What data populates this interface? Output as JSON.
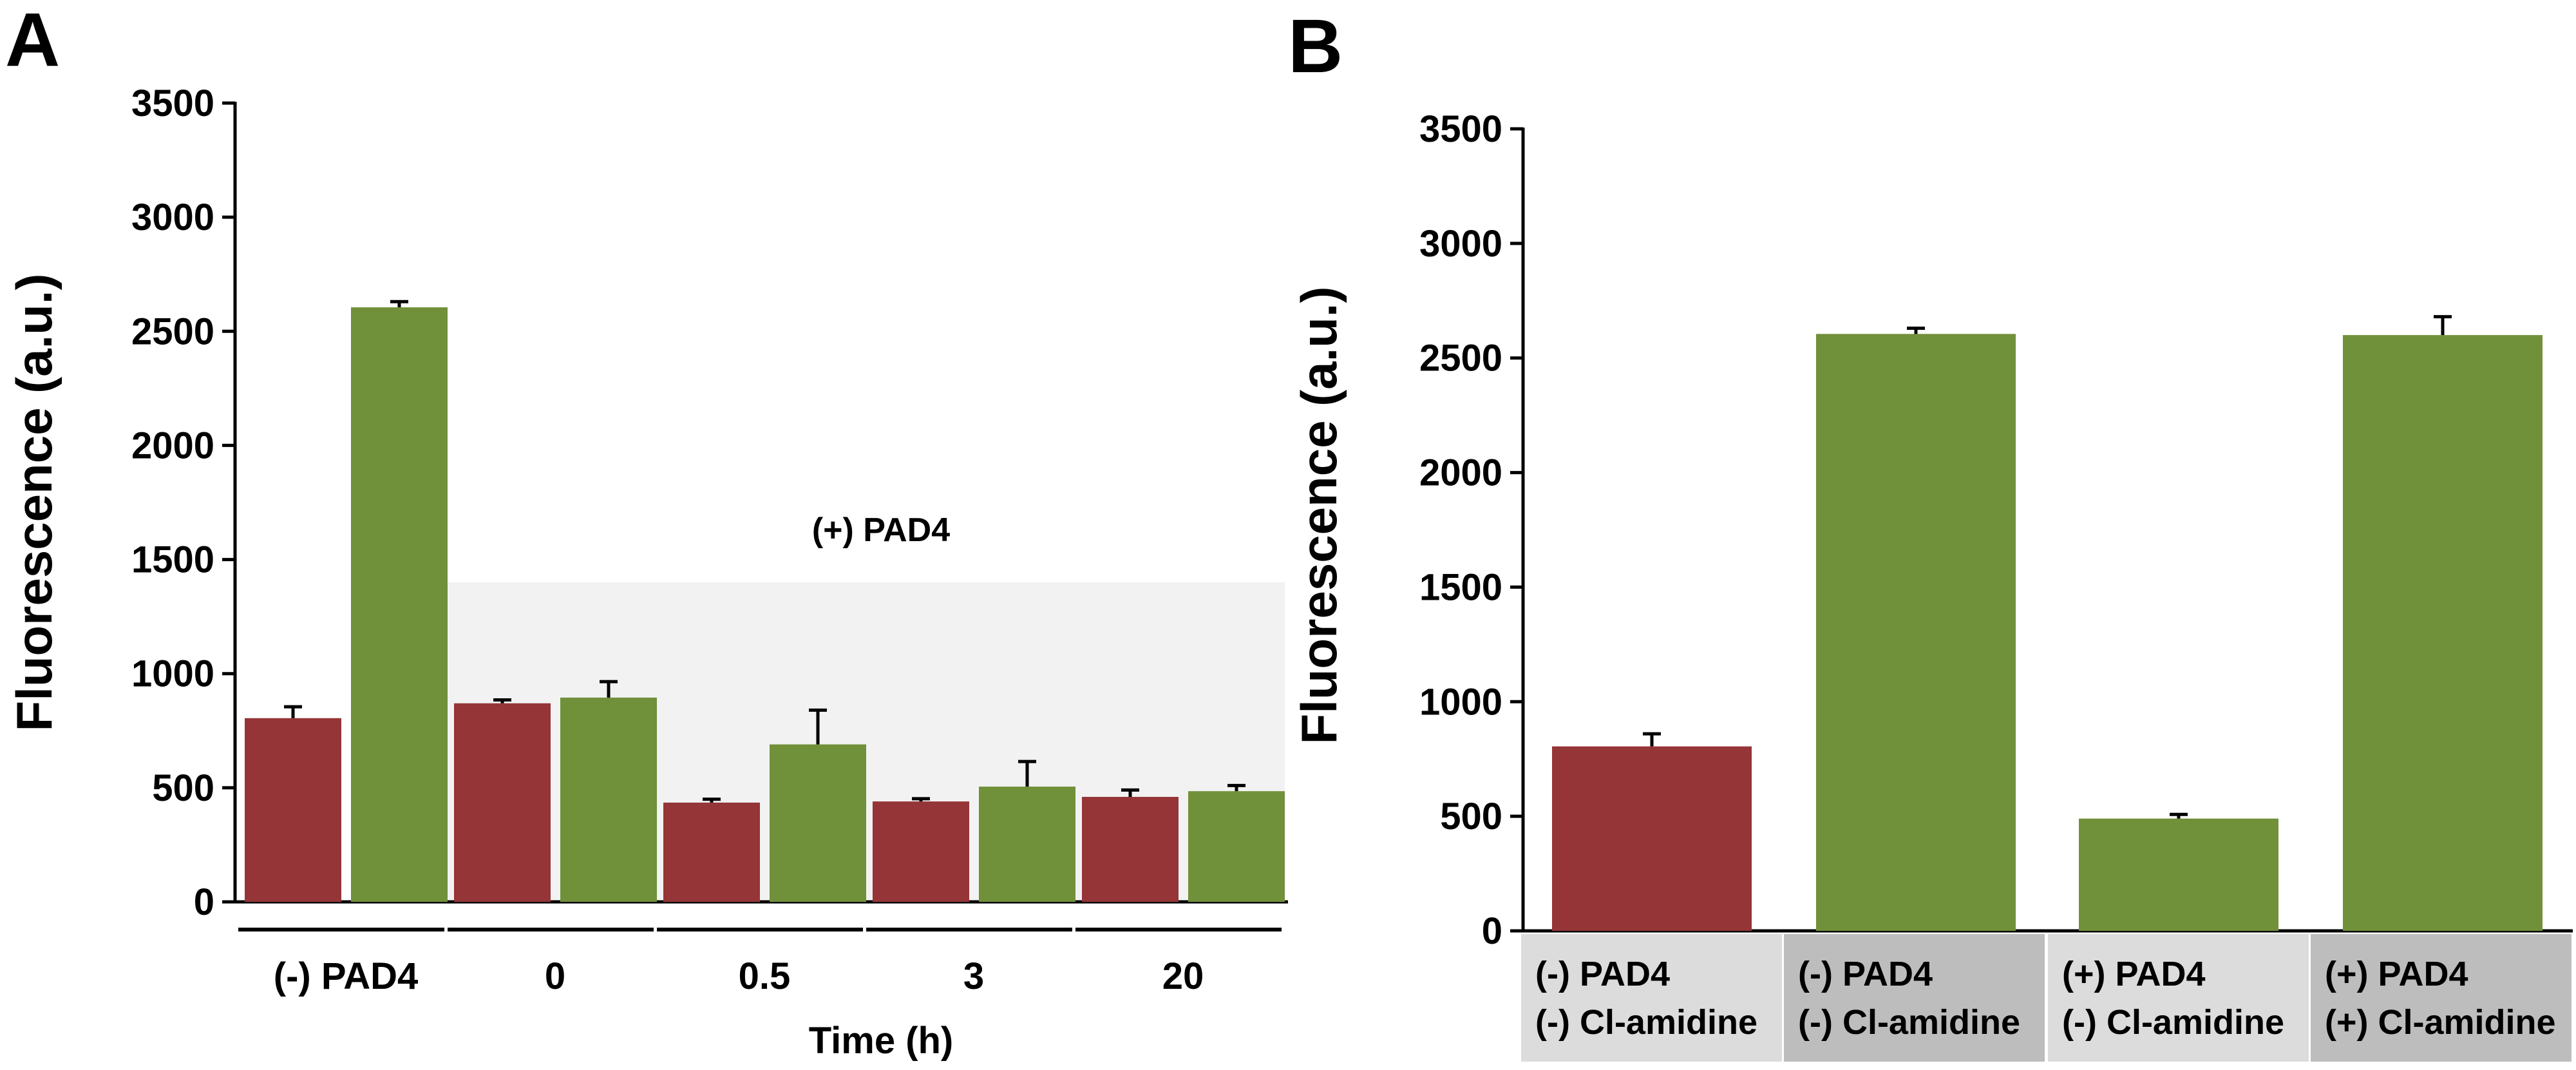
{
  "colors": {
    "red": "#953537",
    "green": "#71903A",
    "shade": "#F2F2F2",
    "cellLight": "#DCDCDC",
    "cellDark": "#BDBDBD",
    "axis": "#000000"
  },
  "chart_data": [
    {
      "panel": "A",
      "type": "bar",
      "ylabel": "Fluorescence (a.u.)",
      "xlabel": "Time (h)",
      "ylim": [
        0,
        3500
      ],
      "yticks": [
        0,
        500,
        1000,
        1500,
        2000,
        2500,
        3000,
        3500
      ],
      "groups": [
        "(-) PAD4",
        "0",
        "0.5",
        "3",
        "20"
      ],
      "series": [
        {
          "name": "red",
          "color": "red",
          "values": [
            805,
            870,
            435,
            440,
            460
          ],
          "errors": [
            50,
            15,
            15,
            12,
            30
          ]
        },
        {
          "name": "green",
          "color": "green",
          "values": [
            2605,
            895,
            690,
            505,
            485
          ],
          "errors": [
            25,
            70,
            150,
            110,
            25
          ]
        }
      ],
      "shade_label": "(+) PAD4",
      "shade_top": 1400
    },
    {
      "panel": "B",
      "type": "bar",
      "ylabel": "Fluorescence (a.u.)",
      "ylim": [
        0,
        3500
      ],
      "yticks": [
        0,
        500,
        1000,
        1500,
        2000,
        2500,
        3000,
        3500
      ],
      "categories": [
        [
          "(-) PAD4",
          "(-) Cl-amidine"
        ],
        [
          "(-) PAD4",
          "(-) Cl-amidine"
        ],
        [
          "(+) PAD4",
          "(-) Cl-amidine"
        ],
        [
          "(+) PAD4",
          "(+) Cl-amidine"
        ]
      ],
      "values": [
        805,
        2605,
        490,
        2600
      ],
      "errors": [
        55,
        25,
        18,
        80
      ],
      "bar_colors": [
        "red",
        "green",
        "green",
        "green"
      ],
      "cell_colors": [
        "cellLight",
        "cellDark",
        "cellLight",
        "cellDark"
      ]
    }
  ]
}
